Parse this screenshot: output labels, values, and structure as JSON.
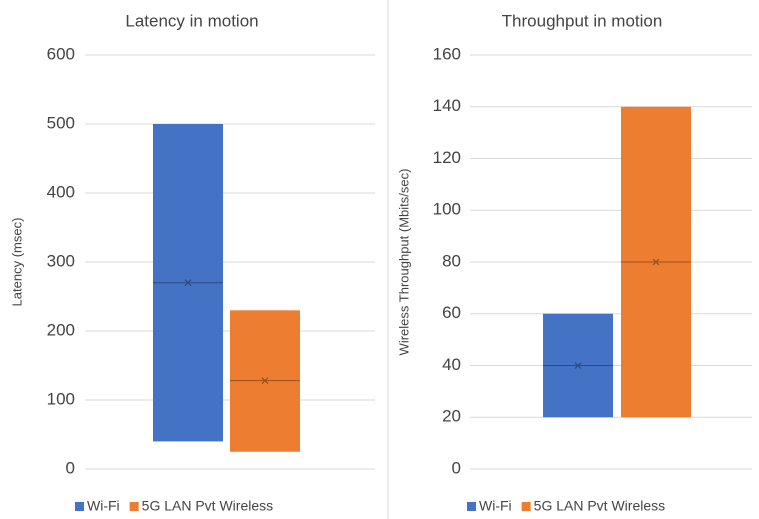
{
  "chart_data": [
    {
      "type": "box",
      "title": "Latency in motion",
      "ylabel": "Latency (msec)",
      "ylim": [
        0,
        600
      ],
      "yticks": [
        0,
        100,
        200,
        300,
        400,
        500,
        600
      ],
      "grid": true,
      "series": [
        {
          "name": "Wi-Fi",
          "color": "#4472c4",
          "low": 40,
          "high": 500,
          "mean": 270,
          "median": 270
        },
        {
          "name": "5G LAN Pvt Wireless",
          "color": "#ed7d31",
          "low": 25,
          "high": 230,
          "mean": 128,
          "median": 128
        }
      ]
    },
    {
      "type": "box",
      "title": "Throughput in motion",
      "ylabel": "Wireless  Throughput (Mbits/sec)",
      "ylim": [
        0,
        160
      ],
      "yticks": [
        0,
        20,
        40,
        60,
        80,
        100,
        120,
        140,
        160
      ],
      "grid": true,
      "series": [
        {
          "name": "Wi-Fi",
          "color": "#4472c4",
          "low": 20,
          "high": 60,
          "mean": 40,
          "median": 40
        },
        {
          "name": "5G LAN Pvt Wireless",
          "color": "#ed7d31",
          "low": 20,
          "high": 140,
          "mean": 80,
          "median": 80
        }
      ]
    }
  ]
}
